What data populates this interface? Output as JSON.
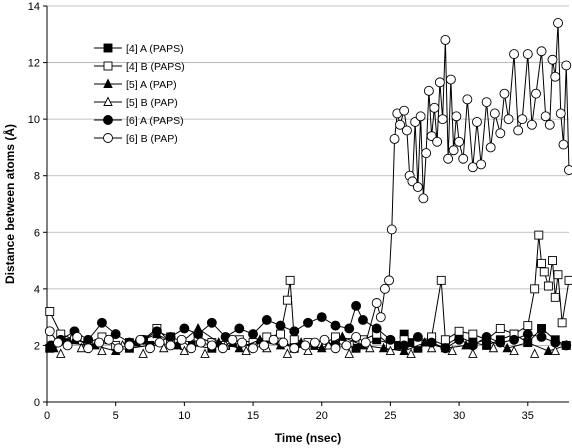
{
  "chart_data": {
    "type": "scatter",
    "xlabel": "Time (nsec)",
    "ylabel": "Distance between atoms (Å)",
    "xlim": [
      0,
      38
    ],
    "ylim": [
      0,
      14
    ],
    "xticks": [
      0,
      5,
      10,
      15,
      20,
      25,
      30,
      35
    ],
    "yticks": [
      0,
      2,
      4,
      6,
      8,
      10,
      12,
      14
    ],
    "grid": "horizontal",
    "legend_position": "top-left",
    "series": [
      {
        "name": "[4] A (PAPS)",
        "marker": "square",
        "fill": "#000000",
        "connected": true,
        "x": [
          0.2,
          1.5,
          3,
          4.5,
          6,
          7.5,
          9,
          10.5,
          12,
          13.5,
          15,
          16.5,
          18,
          19.5,
          21,
          22.5,
          24,
          25.5,
          26,
          26.5,
          27,
          28,
          29,
          30,
          31,
          32,
          33,
          34,
          35,
          36,
          37,
          37.8
        ],
        "y": [
          1.9,
          2.1,
          2.0,
          2.2,
          1.9,
          2.0,
          2.3,
          2.0,
          1.9,
          2.1,
          2.0,
          2.2,
          1.9,
          2.0,
          2.1,
          1.9,
          2.2,
          2.0,
          2.4,
          2.1,
          1.9,
          2.2,
          2.0,
          2.3,
          2.1,
          2.0,
          2.2,
          2.4,
          2.1,
          2.6,
          2.2,
          2.0
        ]
      },
      {
        "name": "[4] B (PAPS)",
        "marker": "square",
        "fill": "#ffffff",
        "connected": true,
        "x": [
          0.2,
          1,
          2,
          3,
          4,
          5,
          6,
          7,
          8,
          9,
          10,
          11,
          12,
          13,
          14,
          15,
          16,
          17,
          17.5,
          17.7,
          18,
          19,
          20,
          21,
          22,
          23,
          24,
          25,
          26,
          27,
          28,
          28.7,
          29,
          30,
          31,
          32,
          33,
          34,
          35,
          35.5,
          35.8,
          36,
          36.2,
          36.5,
          36.8,
          37,
          37.2,
          37.5,
          38
        ],
        "y": [
          3.2,
          2.4,
          2.2,
          2.1,
          2.3,
          2.0,
          2.1,
          2.2,
          2.6,
          2.1,
          2.0,
          2.3,
          2.1,
          2.0,
          2.2,
          2.1,
          2.3,
          2.4,
          3.6,
          4.3,
          2.2,
          2.1,
          2.0,
          2.3,
          2.1,
          2.2,
          2.4,
          2.0,
          2.2,
          2.1,
          2.3,
          4.3,
          2.2,
          2.5,
          2.4,
          2.2,
          2.6,
          2.4,
          2.7,
          4.0,
          5.9,
          4.9,
          4.6,
          4.1,
          5.0,
          3.7,
          4.5,
          2.8,
          4.3
        ]
      },
      {
        "name": "[5] A (PAP)",
        "marker": "triangle",
        "fill": "#000000",
        "connected": true,
        "x": [
          0.5,
          2,
          3.5,
          5,
          6.5,
          8,
          9.5,
          11,
          12.5,
          14,
          15.5,
          17,
          18.5,
          20,
          21.5,
          23,
          24.5,
          26,
          27.5,
          29,
          30.5,
          32,
          33.5,
          35,
          36.5,
          37.8
        ],
        "y": [
          1.9,
          2.2,
          2.0,
          1.8,
          2.1,
          2.4,
          2.0,
          2.6,
          2.1,
          1.9,
          2.2,
          2.0,
          2.1,
          1.9,
          2.3,
          2.0,
          1.9,
          1.8,
          2.1,
          1.9,
          2.0,
          2.2,
          1.9,
          2.1,
          1.8,
          2.0
        ]
      },
      {
        "name": "[5] B (PAP)",
        "marker": "triangle",
        "fill": "#ffffff",
        "connected": false,
        "x": [
          1,
          2.5,
          4,
          5.5,
          7,
          8.5,
          10,
          11.5,
          13,
          14.5,
          16,
          17.5,
          19,
          20.5,
          22,
          23.5,
          25,
          26.5,
          28,
          29.5,
          31,
          32.5,
          34,
          35.5,
          37
        ],
        "y": [
          1.7,
          1.9,
          1.8,
          2.0,
          1.7,
          1.9,
          1.8,
          1.7,
          2.0,
          1.8,
          1.9,
          1.7,
          1.8,
          2.0,
          1.7,
          1.9,
          1.8,
          1.7,
          1.9,
          1.8,
          1.7,
          1.9,
          1.8,
          1.7,
          1.8
        ]
      },
      {
        "name": "[6] A (PAPS)",
        "marker": "circle",
        "fill": "#000000",
        "connected": true,
        "x": [
          0.3,
          1,
          2,
          3,
          4,
          5,
          6,
          7,
          8,
          9,
          10,
          11,
          12,
          13,
          14,
          15,
          16,
          17,
          18,
          19,
          20,
          21,
          22,
          22.5,
          23,
          24,
          25,
          26,
          27,
          28,
          29,
          30,
          31,
          32,
          33,
          34,
          35,
          36,
          37,
          37.8
        ],
        "y": [
          2.0,
          2.2,
          2.5,
          2.2,
          2.8,
          2.4,
          2.1,
          2.2,
          2.5,
          2.3,
          2.6,
          2.4,
          2.8,
          2.3,
          2.6,
          2.4,
          2.9,
          2.7,
          2.5,
          2.8,
          3.0,
          2.7,
          2.6,
          3.4,
          2.9,
          2.6,
          2.2,
          2.0,
          2.3,
          2.1,
          1.9,
          2.2,
          2.0,
          2.3,
          2.1,
          2.2,
          2.4,
          2.3,
          2.1,
          2.0
        ]
      },
      {
        "name": "[6] B (PAP)",
        "marker": "circle",
        "fill": "#ffffff",
        "connected": true,
        "x": [
          0.2,
          0.8,
          1.5,
          2.2,
          3,
          3.8,
          4.5,
          5.2,
          6,
          6.8,
          7.5,
          8.2,
          9,
          9.8,
          10.5,
          11.2,
          12,
          12.8,
          13.5,
          14.2,
          15,
          15.8,
          16.5,
          17.2,
          18,
          18.8,
          19.5,
          20.2,
          21,
          21.8,
          22.5,
          23.2,
          24,
          24.3,
          24.6,
          24.9,
          25.1,
          25.3,
          25.5,
          25.7,
          26,
          26.2,
          26.4,
          26.6,
          26.8,
          27,
          27.2,
          27.4,
          27.6,
          27.8,
          28,
          28.2,
          28.4,
          28.6,
          28.8,
          29,
          29.2,
          29.4,
          29.6,
          29.8,
          30,
          30.3,
          30.6,
          31,
          31.3,
          31.6,
          32,
          32.3,
          32.6,
          33,
          33.3,
          33.6,
          34,
          34.3,
          34.6,
          35,
          35.3,
          35.6,
          36,
          36.3,
          36.6,
          36.8,
          37,
          37.2,
          37.4,
          37.6,
          37.8,
          38
        ],
        "y": [
          2.5,
          2.1,
          2.0,
          2.3,
          1.9,
          2.1,
          2.2,
          1.9,
          2.0,
          2.2,
          1.9,
          2.1,
          2.0,
          2.2,
          1.9,
          2.1,
          2.0,
          1.9,
          2.2,
          2.1,
          1.9,
          2.0,
          2.2,
          2.1,
          1.9,
          2.0,
          2.1,
          2.2,
          1.9,
          2.0,
          2.3,
          2.1,
          3.5,
          3.0,
          4.0,
          4.3,
          6.1,
          9.3,
          10.2,
          9.8,
          10.3,
          9.6,
          8.0,
          7.8,
          9.9,
          7.6,
          10.1,
          7.2,
          8.8,
          11.0,
          9.4,
          10.4,
          9.2,
          11.3,
          10.0,
          12.8,
          8.6,
          11.4,
          8.9,
          10.1,
          9.2,
          8.6,
          10.7,
          8.3,
          9.9,
          8.4,
          10.6,
          9.0,
          10.2,
          9.5,
          10.9,
          10.0,
          12.3,
          9.6,
          10.0,
          12.3,
          9.8,
          10.9,
          12.4,
          10.1,
          9.8,
          12.1,
          11.5,
          13.4,
          10.2,
          9.1,
          11.9,
          8.2
        ]
      }
    ]
  }
}
